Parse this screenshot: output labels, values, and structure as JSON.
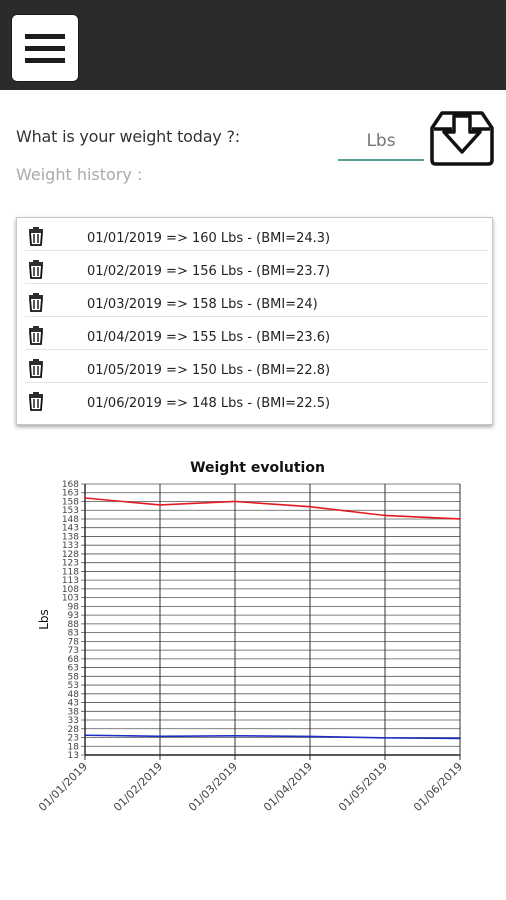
{
  "form": {
    "question": "What is your weight today ?:",
    "weight_placeholder": "Lbs",
    "history_label": "Weight history :"
  },
  "history": [
    {
      "text": "01/01/2019 => 160 Lbs - (BMI=24.3)"
    },
    {
      "text": "01/02/2019 => 156 Lbs - (BMI=23.7)"
    },
    {
      "text": "01/03/2019 => 158 Lbs - (BMI=24)"
    },
    {
      "text": "01/04/2019 => 155 Lbs - (BMI=23.6)"
    },
    {
      "text": "01/05/2019 => 150 Lbs - (BMI=22.8)"
    },
    {
      "text": "01/06/2019 => 148 Lbs - (BMI=22.5)"
    }
  ],
  "icons": {
    "menu": "hamburger-icon",
    "save": "download-tray-icon",
    "delete": "trash-icon"
  },
  "colors": {
    "topbar": "#2b2b2b",
    "input_underline": "#5a9e96",
    "weight_series": "#e31b23",
    "bmi_series": "#1d2fc4"
  },
  "chart_data": {
    "type": "line",
    "title": "Weight evolution",
    "ylabel": "Lbs",
    "xlabel": "",
    "categories": [
      "01/01/2019",
      "01/02/2019",
      "01/03/2019",
      "01/04/2019",
      "01/05/2019",
      "01/06/2019"
    ],
    "ylim": [
      13,
      168
    ],
    "yticks": [
      13,
      18,
      23,
      28,
      33,
      38,
      43,
      48,
      53,
      58,
      63,
      68,
      73,
      78,
      83,
      88,
      93,
      98,
      103,
      108,
      113,
      118,
      123,
      128,
      133,
      138,
      143,
      148,
      153,
      158,
      163,
      168
    ],
    "grid": true,
    "series": [
      {
        "values": [
          160,
          156,
          158,
          155,
          150,
          148
        ],
        "color": "#e31b23"
      },
      {
        "values": [
          24.3,
          23.7,
          24,
          23.6,
          22.8,
          22.5
        ],
        "color": "#1d2fc4"
      }
    ]
  }
}
